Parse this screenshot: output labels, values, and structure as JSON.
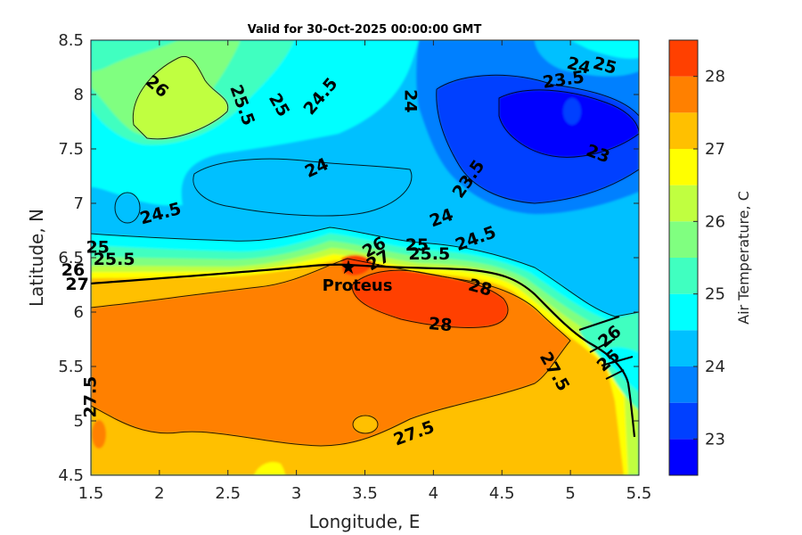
{
  "chart_data": {
    "type": "heatmap",
    "subtype": "filled-contour-map",
    "title": "Valid for 30-Oct-2025 00:00:00 GMT",
    "xlabel": "Longitude, E",
    "ylabel": "Latitude, N",
    "colorbar_label": "Air Temperature, C",
    "xlim": [
      1.5,
      5.5
    ],
    "ylim": [
      4.5,
      8.5
    ],
    "x_ticks": [
      1.5,
      2,
      2.5,
      3,
      3.5,
      4,
      4.5,
      5,
      5.5
    ],
    "x_tick_labels": [
      "1.5",
      "2",
      "2.5",
      "3",
      "3.5",
      "4",
      "4.5",
      "5",
      "5.5"
    ],
    "y_ticks": [
      4.5,
      5,
      5.5,
      6,
      6.5,
      7,
      7.5,
      8,
      8.5
    ],
    "y_tick_labels": [
      "4.5",
      "5",
      "5.5",
      "6",
      "6.5",
      "7",
      "7.5",
      "8",
      "8.5"
    ],
    "colorbar": {
      "levels": [
        22.5,
        23,
        23.5,
        24,
        24.5,
        25,
        25.5,
        26,
        26.5,
        27,
        27.5,
        28,
        28.5
      ],
      "colors": [
        "#0000ff",
        "#0040ff",
        "#0080ff",
        "#00c0ff",
        "#00ffff",
        "#40ffc0",
        "#80ff80",
        "#c0ff40",
        "#ffff00",
        "#ffc000",
        "#ff8000",
        "#ff4000",
        "#ff0000"
      ],
      "ticks": [
        23,
        24,
        25,
        26,
        27,
        28
      ],
      "tick_labels": [
        "23",
        "24",
        "25",
        "26",
        "27",
        "28"
      ]
    },
    "contour_labels": [
      {
        "text": "26",
        "x": 1.98,
        "y": 8.07,
        "angle": -40
      },
      {
        "text": "25.5",
        "x": 2.6,
        "y": 7.9,
        "angle": -70
      },
      {
        "text": "25",
        "x": 2.87,
        "y": 7.9,
        "angle": -60
      },
      {
        "text": "24.5",
        "x": 3.18,
        "y": 7.98,
        "angle": 50
      },
      {
        "text": "24",
        "x": 3.83,
        "y": 7.94,
        "angle": -90
      },
      {
        "text": "24",
        "x": 5.06,
        "y": 8.26,
        "angle": -15
      },
      {
        "text": "25",
        "x": 5.25,
        "y": 8.26,
        "angle": -15
      },
      {
        "text": "23.5",
        "x": 4.95,
        "y": 8.13,
        "angle": 8
      },
      {
        "text": "24",
        "x": 3.15,
        "y": 7.32,
        "angle": 25
      },
      {
        "text": "23.5",
        "x": 4.26,
        "y": 7.22,
        "angle": 55
      },
      {
        "text": "23",
        "x": 5.2,
        "y": 7.45,
        "angle": -20
      },
      {
        "text": "24.5",
        "x": 2.01,
        "y": 6.9,
        "angle": 15
      },
      {
        "text": "24",
        "x": 4.06,
        "y": 6.86,
        "angle": 20
      },
      {
        "text": "24.5",
        "x": 4.31,
        "y": 6.67,
        "angle": 20
      },
      {
        "text": "25",
        "x": 1.55,
        "y": 6.59,
        "angle": 0
      },
      {
        "text": "25.5",
        "x": 1.67,
        "y": 6.48,
        "angle": 0
      },
      {
        "text": "26",
        "x": 1.37,
        "y": 6.38,
        "angle": 0
      },
      {
        "text": "27",
        "x": 1.4,
        "y": 6.25,
        "angle": 0
      },
      {
        "text": "26",
        "x": 3.57,
        "y": 6.59,
        "angle": 30
      },
      {
        "text": "25",
        "x": 3.88,
        "y": 6.61,
        "angle": 0
      },
      {
        "text": "25.5",
        "x": 3.97,
        "y": 6.53,
        "angle": 0
      },
      {
        "text": "27",
        "x": 3.6,
        "y": 6.47,
        "angle": 30
      },
      {
        "text": "28",
        "x": 4.34,
        "y": 6.22,
        "angle": -15
      },
      {
        "text": "28",
        "x": 4.05,
        "y": 5.88,
        "angle": -5
      },
      {
        "text": "27.5",
        "x": 1.5,
        "y": 5.22,
        "angle": 90
      },
      {
        "text": "27.5",
        "x": 4.88,
        "y": 5.45,
        "angle": -60
      },
      {
        "text": "27.5",
        "x": 3.86,
        "y": 4.88,
        "angle": 20
      },
      {
        "text": "26",
        "x": 5.29,
        "y": 5.77,
        "angle": 40
      },
      {
        "text": "25",
        "x": 5.28,
        "y": 5.55,
        "angle": 40
      }
    ],
    "annotations": [
      {
        "text": "Proteus",
        "x": 3.38,
        "y": 6.41
      }
    ]
  }
}
